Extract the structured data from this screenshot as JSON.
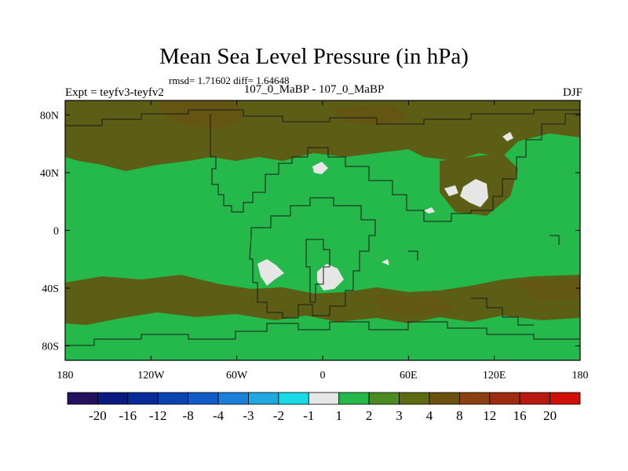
{
  "title": "Mean Sea Level Pressure (in hPa)",
  "stats": "rmsd= 1.71602 diff= 1.64648",
  "left_label": "Expt = teyfv3-teyfv2",
  "center_label": "107_0_MaBP - 107_0_MaBP",
  "right_label": "DJF",
  "chart_data": {
    "type": "heatmap",
    "title": "Mean Sea Level Pressure (in hPa)",
    "projection": "cylindrical equidistant",
    "xlim": [
      -180,
      180
    ],
    "ylim": [
      -90,
      90
    ],
    "x_ticks": [
      {
        "value": -180,
        "label": "180"
      },
      {
        "value": -120,
        "label": "120W"
      },
      {
        "value": -60,
        "label": "60W"
      },
      {
        "value": 0,
        "label": "0"
      },
      {
        "value": 60,
        "label": "60E"
      },
      {
        "value": 120,
        "label": "120E"
      },
      {
        "value": 180,
        "label": "180"
      }
    ],
    "y_ticks": [
      {
        "value": 80,
        "label": "80N"
      },
      {
        "value": 40,
        "label": "40N"
      },
      {
        "value": 0,
        "label": "0"
      },
      {
        "value": -40,
        "label": "40S"
      },
      {
        "value": -80,
        "label": "80S"
      }
    ],
    "colorbar": {
      "labels": [
        "-20",
        "-16",
        "-12",
        "-8",
        "-4",
        "-3",
        "-2",
        "-1",
        "1",
        "2",
        "3",
        "4",
        "8",
        "12",
        "16",
        "20"
      ],
      "colors": [
        "#24105e",
        "#0b1a80",
        "#0a2a9a",
        "#0a44b0",
        "#0f5cc8",
        "#1a80d8",
        "#20a8e0",
        "#18dbe6",
        "#e6e6e6",
        "#25b84a",
        "#4c8a22",
        "#5e6a12",
        "#6b5010",
        "#8a4010",
        "#9e2a10",
        "#b8180e",
        "#d00e0a"
      ]
    },
    "regions": [
      {
        "name": "background",
        "range": "1 to 2",
        "color": "#25b84a"
      },
      {
        "name": "arctic high",
        "range": "2 to 3",
        "color": "#5c5e16",
        "lat": [
          55,
          90
        ],
        "lon": [
          -180,
          180
        ]
      },
      {
        "name": "southern ocean band",
        "range": "2 to 3",
        "color": "#5c5e16",
        "lat": [
          -65,
          -45
        ],
        "lon": [
          -180,
          180
        ]
      },
      {
        "name": "asia patch",
        "range": "-1 to 1",
        "color": "#e6e6e6",
        "lat": [
          25,
          45
        ],
        "lon": [
          95,
          120
        ]
      },
      {
        "name": "south america patch",
        "range": "-1 to 1",
        "color": "#e6e6e6",
        "lat": [
          -40,
          -25
        ],
        "lon": [
          -45,
          -30
        ]
      },
      {
        "name": "africa patch",
        "range": "-1 to 1",
        "color": "#e6e6e6",
        "lat": [
          -40,
          -25
        ],
        "lon": [
          -5,
          10
        ]
      }
    ]
  }
}
